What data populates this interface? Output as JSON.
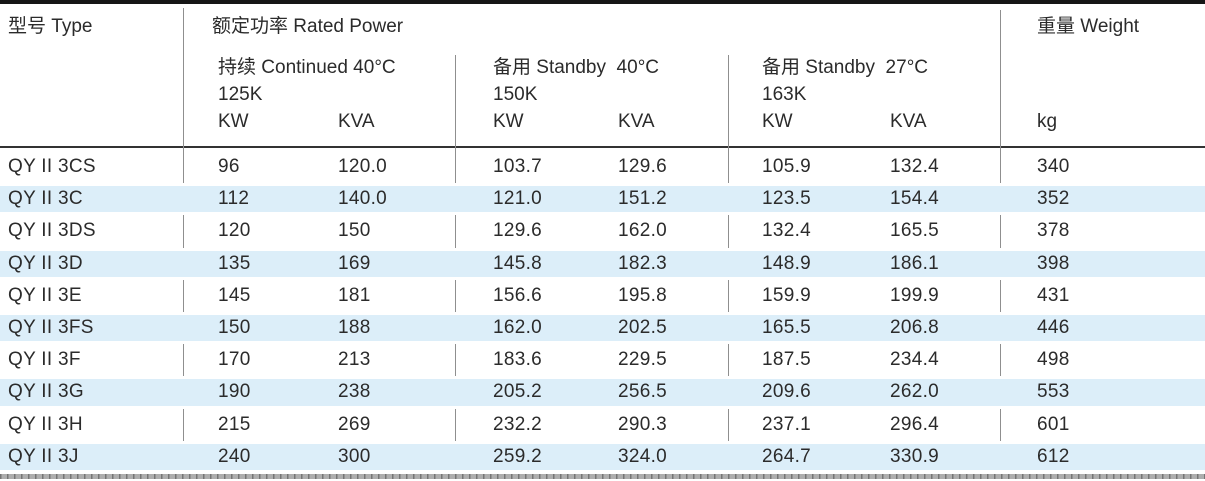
{
  "table": {
    "type_label": "型号 Type",
    "rated_power_label": "额定功率 Rated Power",
    "weight_label": "重量 Weight",
    "weight_unit": "kg",
    "sections": [
      {
        "label": "持续 Continued 40°C",
        "k": "125K",
        "kw": "KW",
        "kva": "KVA"
      },
      {
        "label": "备用 Standby  40°C",
        "k": "150K",
        "kw": "KW",
        "kva": "KVA"
      },
      {
        "label": "备用 Standby  27°C",
        "k": "163K",
        "kw": "KW",
        "kva": "KVA"
      }
    ],
    "rows": [
      {
        "model": "QY II 3CS",
        "c40_kw": "96",
        "c40_kva": "120.0",
        "s40_kw": "103.7",
        "s40_kva": "129.6",
        "s27_kw": "105.9",
        "s27_kva": "132.4",
        "weight": "340"
      },
      {
        "model": "QY II 3C",
        "c40_kw": "112",
        "c40_kva": "140.0",
        "s40_kw": "121.0",
        "s40_kva": "151.2",
        "s27_kw": "123.5",
        "s27_kva": "154.4",
        "weight": "352"
      },
      {
        "model": "QY II 3DS",
        "c40_kw": "120",
        "c40_kva": "150",
        "s40_kw": "129.6",
        "s40_kva": "162.0",
        "s27_kw": "132.4",
        "s27_kva": "165.5",
        "weight": "378"
      },
      {
        "model": "QY II 3D",
        "c40_kw": "135",
        "c40_kva": "169",
        "s40_kw": "145.8",
        "s40_kva": "182.3",
        "s27_kw": "148.9",
        "s27_kva": "186.1",
        "weight": "398"
      },
      {
        "model": "QY II 3E",
        "c40_kw": "145",
        "c40_kva": "181",
        "s40_kw": "156.6",
        "s40_kva": "195.8",
        "s27_kw": "159.9",
        "s27_kva": "199.9",
        "weight": "431"
      },
      {
        "model": "QY II 3FS",
        "c40_kw": "150",
        "c40_kva": "188",
        "s40_kw": "162.0",
        "s40_kva": "202.5",
        "s27_kw": "165.5",
        "s27_kva": "206.8",
        "weight": "446"
      },
      {
        "model": "QY II 3F",
        "c40_kw": "170",
        "c40_kva": "213",
        "s40_kw": "183.6",
        "s40_kva": "229.5",
        "s27_kw": "187.5",
        "s27_kva": "234.4",
        "weight": "498"
      },
      {
        "model": "QY II 3G",
        "c40_kw": "190",
        "c40_kva": "238",
        "s40_kw": "205.2",
        "s40_kva": "256.5",
        "s27_kw": "209.6",
        "s27_kva": "262.0",
        "weight": "553"
      },
      {
        "model": "QY II 3H",
        "c40_kw": "215",
        "c40_kva": "269",
        "s40_kw": "232.2",
        "s40_kva": "290.3",
        "s27_kw": "237.1",
        "s27_kva": "296.4",
        "weight": "601"
      },
      {
        "model": "QY II 3J",
        "c40_kw": "240",
        "c40_kva": "300",
        "s40_kw": "259.2",
        "s40_kva": "324.0",
        "s27_kw": "264.7",
        "s27_kva": "330.9",
        "weight": "612"
      }
    ]
  },
  "colors": {
    "stripe": "#dceef9",
    "text": "#2b2b2b",
    "top_border": "#161616",
    "divider": "#8f8f8f",
    "header_line": "#333333"
  }
}
